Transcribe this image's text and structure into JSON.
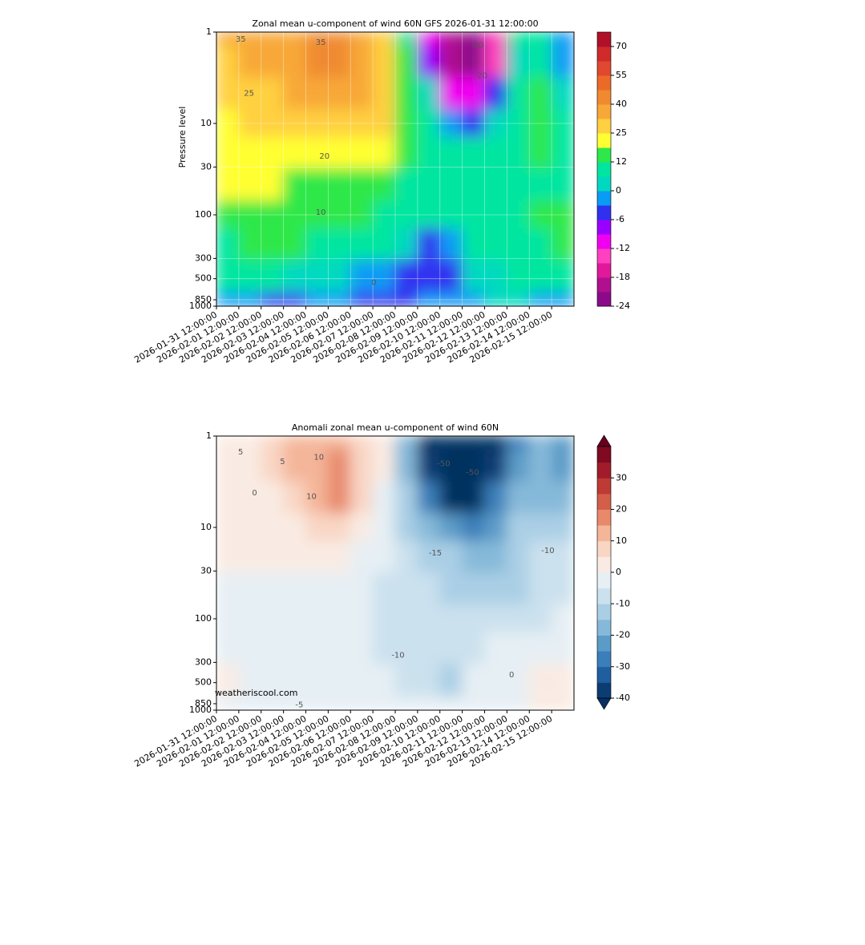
{
  "chart_data": [
    {
      "type": "heatmap",
      "title": "Zonal mean u-component of wind 60N GFS 2026-01-31 12:00:00",
      "ylabel": "Pressure level",
      "x": [
        "2026-01-31 12:00:00",
        "2026-02-01 12:00:00",
        "2026-02-02 12:00:00",
        "2026-02-03 12:00:00",
        "2026-02-04 12:00:00",
        "2026-02-05 12:00:00",
        "2026-02-06 12:00:00",
        "2026-02-07 12:00:00",
        "2026-02-08 12:00:00",
        "2026-02-09 12:00:00",
        "2026-02-10 12:00:00",
        "2026-02-11 12:00:00",
        "2026-02-12 12:00:00",
        "2026-02-13 12:00:00",
        "2026-02-14 12:00:00",
        "2026-02-15 12:00:00"
      ],
      "y": [
        1,
        2,
        5,
        10,
        20,
        50,
        100,
        200,
        500,
        1000
      ],
      "z": [
        [
          33,
          35,
          36,
          38,
          40,
          42,
          38,
          30,
          10,
          -10,
          -20,
          -22,
          -15,
          8,
          8,
          -3
        ],
        [
          30,
          33,
          35,
          38,
          40,
          42,
          38,
          28,
          12,
          -8,
          -20,
          -22,
          -15,
          5,
          10,
          -3
        ],
        [
          26,
          28,
          30,
          32,
          35,
          38,
          34,
          27,
          14,
          2,
          -10,
          -12,
          -6,
          6,
          12,
          5
        ],
        [
          24,
          25,
          26,
          26,
          26,
          28,
          30,
          26,
          15,
          6,
          -3,
          -4,
          2,
          8,
          12,
          6
        ],
        [
          22,
          22,
          22,
          22,
          23,
          24,
          22,
          19,
          13,
          8,
          6,
          6,
          8,
          10,
          12,
          10
        ],
        [
          19,
          19,
          18,
          17,
          16,
          15,
          14,
          13,
          11,
          9,
          7,
          7,
          8,
          9,
          10,
          11
        ],
        [
          14,
          14,
          14,
          14,
          13,
          13,
          12,
          11,
          9,
          7,
          6,
          6,
          8,
          10,
          12,
          13
        ],
        [
          11,
          12,
          12,
          12,
          11,
          10,
          9,
          7,
          3,
          -4,
          -3,
          7,
          9,
          10,
          10,
          12
        ],
        [
          8,
          8,
          6,
          4,
          2,
          0,
          -1,
          -3,
          -4,
          -6,
          -5,
          2,
          5,
          6,
          6,
          6
        ],
        [
          -2,
          -3,
          -4,
          -4,
          -3,
          -3,
          -4,
          -5,
          -4,
          -3,
          -2,
          -1,
          0,
          0,
          -1,
          -2
        ]
      ],
      "xlim": [
        "2026-01-31 12:00:00",
        "2026-02-16 12:00:00"
      ],
      "ylim": [
        1000,
        1
      ],
      "log_y": true,
      "grid": true,
      "xticks": [
        "2026-01-31 12:00:00",
        "2026-02-01 12:00:00",
        "2026-02-02 12:00:00",
        "2026-02-03 12:00:00",
        "2026-02-04 12:00:00",
        "2026-02-05 12:00:00",
        "2026-02-06 12:00:00",
        "2026-02-07 12:00:00",
        "2026-02-08 12:00:00",
        "2026-02-09 12:00:00",
        "2026-02-10 12:00:00",
        "2026-02-11 12:00:00",
        "2026-02-12 12:00:00",
        "2026-02-13 12:00:00",
        "2026-02-14 12:00:00",
        "2026-02-15 12:00:00"
      ],
      "yticks": [
        1,
        10,
        30,
        100,
        300,
        500,
        850,
        1000
      ],
      "colorbar": {
        "levels": [
          -24,
          -21,
          -18,
          -15,
          -12,
          -9,
          -6,
          -3,
          0,
          6,
          12,
          18,
          25,
          32,
          40,
          47,
          55,
          62,
          70,
          79
        ],
        "colors": [
          "#8a0a8a",
          "#b0108f",
          "#e0189a",
          "#ff40c0",
          "#f000f0",
          "#9a00ff",
          "#3030f0",
          "#0a9bf5",
          "#00d9c0",
          "#00e6a0",
          "#2ee84a",
          "#ffff33",
          "#ffd040",
          "#f8a838",
          "#f08a30",
          "#ec6a28",
          "#e04830",
          "#d02a2a",
          "#b01028"
        ],
        "ticks": [
          -24,
          -18,
          -12,
          -6,
          0,
          12,
          25,
          40,
          55,
          70
        ]
      },
      "contour_labels": [
        {
          "x": "2026-02-01 14:00:00",
          "y": 1.2,
          "value": 35
        },
        {
          "x": "2026-02-05 04:00:00",
          "y": 1.3,
          "value": 35
        },
        {
          "x": "2026-02-01 23:00:00",
          "y": 4.7,
          "value": 25
        },
        {
          "x": "2026-02-12 04:00:00",
          "y": 1.4,
          "value": -20
        },
        {
          "x": "2026-02-12 08:00:00",
          "y": 3,
          "value": -20
        },
        {
          "x": "2026-02-05 08:00:00",
          "y": 23,
          "value": 20
        },
        {
          "x": "2026-02-05 04:00:00",
          "y": 94,
          "value": 10
        },
        {
          "x": "2026-02-07 13:00:00",
          "y": 550,
          "value": 0
        }
      ]
    },
    {
      "type": "heatmap",
      "title": "Anomali zonal mean u-component of wind 60N",
      "watermark": "weatheriscool.com",
      "x": [
        "2026-01-31 12:00:00",
        "2026-02-01 12:00:00",
        "2026-02-02 12:00:00",
        "2026-02-03 12:00:00",
        "2026-02-04 12:00:00",
        "2026-02-05 12:00:00",
        "2026-02-06 12:00:00",
        "2026-02-07 12:00:00",
        "2026-02-08 12:00:00",
        "2026-02-09 12:00:00",
        "2026-02-10 12:00:00",
        "2026-02-11 12:00:00",
        "2026-02-12 12:00:00",
        "2026-02-13 12:00:00",
        "2026-02-14 12:00:00",
        "2026-02-15 12:00:00"
      ],
      "y": [
        1,
        2,
        5,
        10,
        20,
        50,
        100,
        200,
        500,
        1000
      ],
      "z": [
        [
          3,
          2,
          5,
          10,
          12,
          14,
          8,
          0,
          -20,
          -45,
          -55,
          -55,
          -45,
          -28,
          -20,
          -25
        ],
        [
          2,
          3,
          6,
          10,
          12,
          18,
          9,
          0,
          -18,
          -40,
          -55,
          -55,
          -40,
          -25,
          -20,
          -22
        ],
        [
          2,
          1,
          3,
          6,
          10,
          15,
          6,
          -2,
          -15,
          -30,
          -42,
          -42,
          -30,
          -20,
          -18,
          -18
        ],
        [
          4,
          4,
          3,
          4,
          6,
          6,
          2,
          -3,
          -12,
          -18,
          -25,
          -28,
          -22,
          -15,
          -12,
          -12
        ],
        [
          3,
          3,
          3,
          3,
          3,
          2,
          -1,
          -5,
          -10,
          -12,
          -15,
          -18,
          -18,
          -14,
          -10,
          -10
        ],
        [
          -2,
          -2,
          -2,
          -2,
          -3,
          -4,
          -5,
          -7,
          -9,
          -10,
          -11,
          -12,
          -12,
          -12,
          -10,
          -8
        ],
        [
          -3,
          -3,
          -3,
          -3,
          -4,
          -4,
          -5,
          -6,
          -8,
          -9,
          -9,
          -9,
          -9,
          -8,
          -6,
          -4
        ],
        [
          -1,
          -2,
          -3,
          -4,
          -5,
          -4,
          -4,
          -6,
          -8,
          -10,
          -8,
          -6,
          -4,
          -3,
          -2,
          -1
        ],
        [
          2,
          -1,
          -3,
          -4,
          -4,
          -3,
          -3,
          -4,
          -6,
          -8,
          -11,
          -5,
          -3,
          -1,
          0,
          1
        ],
        [
          -1,
          -3,
          -4,
          -3,
          -3,
          -3,
          -4,
          -4,
          -4,
          -3,
          -2,
          -2,
          -1,
          -1,
          0,
          0
        ]
      ],
      "xlim": [
        "2026-01-31 12:00:00",
        "2026-02-16 12:00:00"
      ],
      "ylim": [
        1000,
        1
      ],
      "log_y": true,
      "grid": false,
      "xticks": [
        "2026-01-31 12:00:00",
        "2026-02-01 12:00:00",
        "2026-02-02 12:00:00",
        "2026-02-03 12:00:00",
        "2026-02-04 12:00:00",
        "2026-02-05 12:00:00",
        "2026-02-06 12:00:00",
        "2026-02-07 12:00:00",
        "2026-02-08 12:00:00",
        "2026-02-09 12:00:00",
        "2026-02-10 12:00:00",
        "2026-02-11 12:00:00",
        "2026-02-12 12:00:00",
        "2026-02-13 12:00:00",
        "2026-02-14 12:00:00",
        "2026-02-15 12:00:00"
      ],
      "yticks": [
        1,
        10,
        30,
        100,
        300,
        500,
        850,
        1000
      ],
      "colorbar": {
        "levels": [
          -40,
          -35,
          -30,
          -25,
          -20,
          -15,
          -10,
          -5,
          0,
          5,
          10,
          15,
          20,
          25,
          30,
          35,
          40
        ],
        "colors": [
          "#0b3d73",
          "#1f5fa0",
          "#3a7fb9",
          "#5b9bc8",
          "#86b9d9",
          "#aacfe5",
          "#cbe1ee",
          "#e6eff4",
          "#f9ebe3",
          "#f9d6c4",
          "#f4b599",
          "#e8896c",
          "#d35f4a",
          "#bd3a35",
          "#a11b2b",
          "#7f0a22"
        ],
        "under": "#053061",
        "over": "#67001f",
        "ticks": [
          -40,
          -30,
          -20,
          -10,
          0,
          10,
          20,
          30
        ]
      },
      "contour_labels": [
        {
          "x": "2026-02-01 14:00:00",
          "y": 1.5,
          "value": 5
        },
        {
          "x": "2026-02-05 02:00:00",
          "y": 1.7,
          "value": 10
        },
        {
          "x": "2026-02-03 11:00:00",
          "y": 1.9,
          "value": 5
        },
        {
          "x": "2026-02-04 18:00:00",
          "y": 4.6,
          "value": 10
        },
        {
          "x": "2026-02-02 05:00:00",
          "y": 4.2,
          "value": 0
        },
        {
          "x": "2026-02-11 23:00:00",
          "y": 2.5,
          "value": -50
        },
        {
          "x": "2026-02-10 16:00:00",
          "y": 2,
          "value": -50
        },
        {
          "x": "2026-02-10 07:00:00",
          "y": 19,
          "value": -15
        },
        {
          "x": "2026-02-08 15:00:00",
          "y": 250,
          "value": -10
        },
        {
          "x": "2026-02-15 08:00:00",
          "y": 18,
          "value": -10
        },
        {
          "x": "2026-02-04 05:00:00",
          "y": 880,
          "value": -5
        },
        {
          "x": "2026-02-13 17:00:00",
          "y": 410,
          "value": 0
        }
      ]
    }
  ]
}
